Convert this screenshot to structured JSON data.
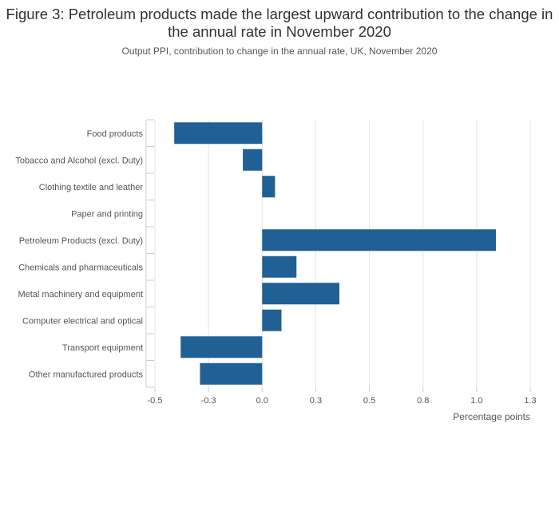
{
  "chart_data": {
    "type": "bar",
    "orientation": "horizontal",
    "title": "Figure 3: Petroleum products made the largest upward contribution to the change in the annual rate in November 2020",
    "subtitle": "Output PPI, contribution to change in the annual rate, UK, November 2020",
    "categories": [
      "Food products",
      "Tobacco and Alcohol (excl. Duty)",
      "Clothing textile and leather",
      "Paper and printing",
      "Petroleum Products (excl. Duty)",
      "Chemicals and pharmaceuticals",
      "Metal machinery and equipment",
      "Computer electrical and optical",
      "Transport equipment",
      "Other manufactured products"
    ],
    "values": [
      -0.41,
      -0.09,
      0.06,
      0.0,
      1.09,
      0.16,
      0.36,
      0.09,
      -0.38,
      -0.29
    ],
    "xlabel": "Percentage points",
    "ylabel": "",
    "xlim": [
      -0.5,
      1.25
    ],
    "ticks": [
      -0.5,
      -0.25,
      0.0,
      0.25,
      0.5,
      0.75,
      1.0,
      1.25
    ],
    "tick_labels": [
      "-0.5",
      "-0.3",
      "0.0",
      "0.3",
      "0.5",
      "0.8",
      "1.0",
      "1.3"
    ],
    "bar_color": "#206095",
    "grid": true
  }
}
